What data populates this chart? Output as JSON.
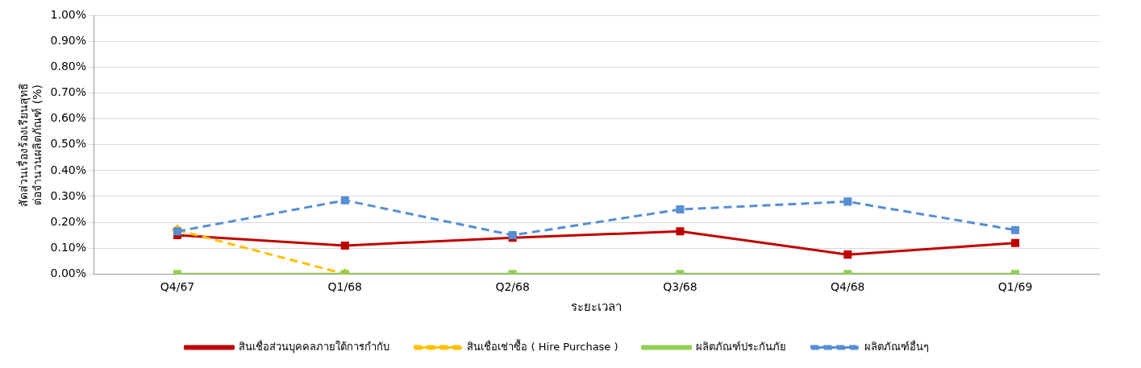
{
  "chart_data": {
    "type": "line",
    "xlabel": "ระยะเวลา",
    "ylabel": [
      "สัดส่วนเรื่องร้องเรียนสุทธิ",
      "ต่อจำนวนผลิตภัณฑ์ (%)"
    ],
    "categories": [
      "Q4/67",
      "Q1/68",
      "Q2/68",
      "Q3/68",
      "Q4/68",
      "Q1/69"
    ],
    "series": [
      {
        "name": "สินเชื่อส่วนบุคคลภายใต้การกำกับ",
        "color": "#c00000",
        "marker": "square",
        "line_style": "solid",
        "values": [
          0.15,
          0.11,
          0.14,
          0.165,
          0.075,
          0.12
        ]
      },
      {
        "name": "สินเชื่อเช่าซื้อ ( Hire Purchase )",
        "color": "#ffc000",
        "marker": "diamond",
        "line_style": "dashed",
        "values": [
          0.17,
          0,
          null,
          null,
          null,
          null
        ]
      },
      {
        "name": "ผลิตภัณฑ์ประกันภัย",
        "color": "#92d050",
        "marker": "square",
        "line_style": "solid",
        "values": [
          0,
          0,
          0,
          0,
          0,
          0
        ]
      },
      {
        "name": "ผลิตภัณฑ์อื่นๆ",
        "color": "#558ed5",
        "marker": "square",
        "line_style": "dashed",
        "values": [
          0.165,
          0.285,
          0.15,
          0.25,
          0.28,
          0.17
        ]
      }
    ],
    "ylim": [
      0,
      1
    ],
    "yticks": [
      {
        "value": 0,
        "label": "0.00%"
      },
      {
        "value": 0.1,
        "label": "0.10%"
      },
      {
        "value": 0.2,
        "label": "0.20%"
      },
      {
        "value": 0.3,
        "label": "0.30%"
      },
      {
        "value": 0.4,
        "label": "0.40%"
      },
      {
        "value": 0.5,
        "label": "0.50%"
      },
      {
        "value": 0.6,
        "label": "0.60%"
      },
      {
        "value": 0.7,
        "label": "0.70%"
      },
      {
        "value": 0.8,
        "label": "0.80%"
      },
      {
        "value": 0.9,
        "label": "0.90%"
      },
      {
        "value": 1,
        "label": "1.00%"
      }
    ],
    "grid": "y",
    "legend": "bottom"
  }
}
